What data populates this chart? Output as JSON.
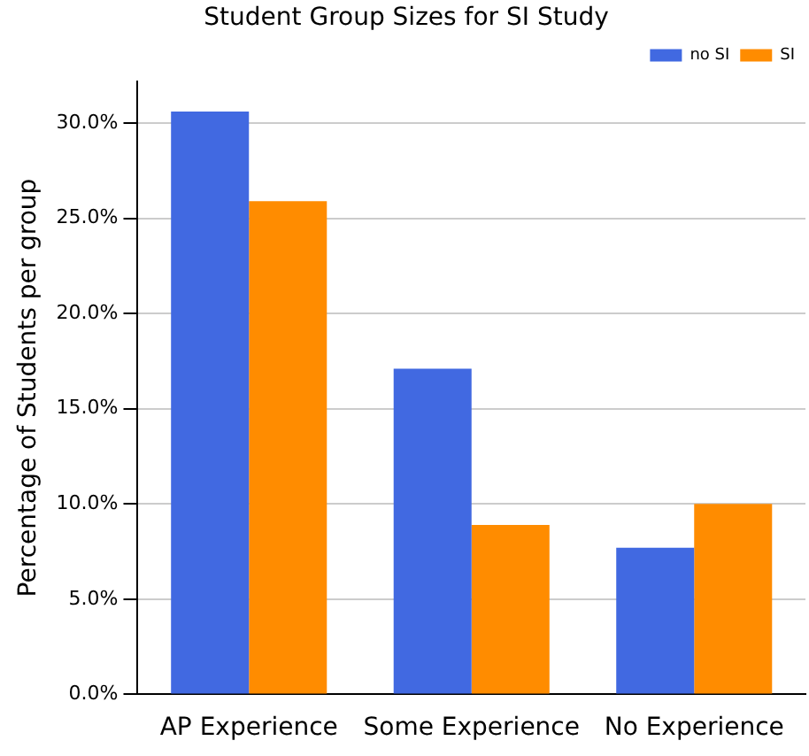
{
  "chart_data": {
    "type": "bar",
    "title": "Student Group Sizes for SI Study",
    "ylabel": "Percentage of Students per group",
    "categories": [
      "AP Experience",
      "Some Experience",
      "No Experience"
    ],
    "series": [
      {
        "name": "no SI",
        "color": "#4169e1",
        "values": [
          30.6,
          17.1,
          7.7
        ]
      },
      {
        "name": "SI",
        "color": "#ff8c00",
        "values": [
          25.9,
          8.9,
          10.0
        ]
      }
    ],
    "ylim": [
      0,
      32.2
    ],
    "yticks": [
      {
        "value": 0,
        "label": "0.0%"
      },
      {
        "value": 5,
        "label": "5.0%"
      },
      {
        "value": 10,
        "label": "10.0%"
      },
      {
        "value": 15,
        "label": "15.0%"
      },
      {
        "value": 20,
        "label": "20.0%"
      },
      {
        "value": 25,
        "label": "25.0%"
      },
      {
        "value": 30,
        "label": "30.0%"
      }
    ],
    "grid": "y",
    "legend": "top right"
  }
}
